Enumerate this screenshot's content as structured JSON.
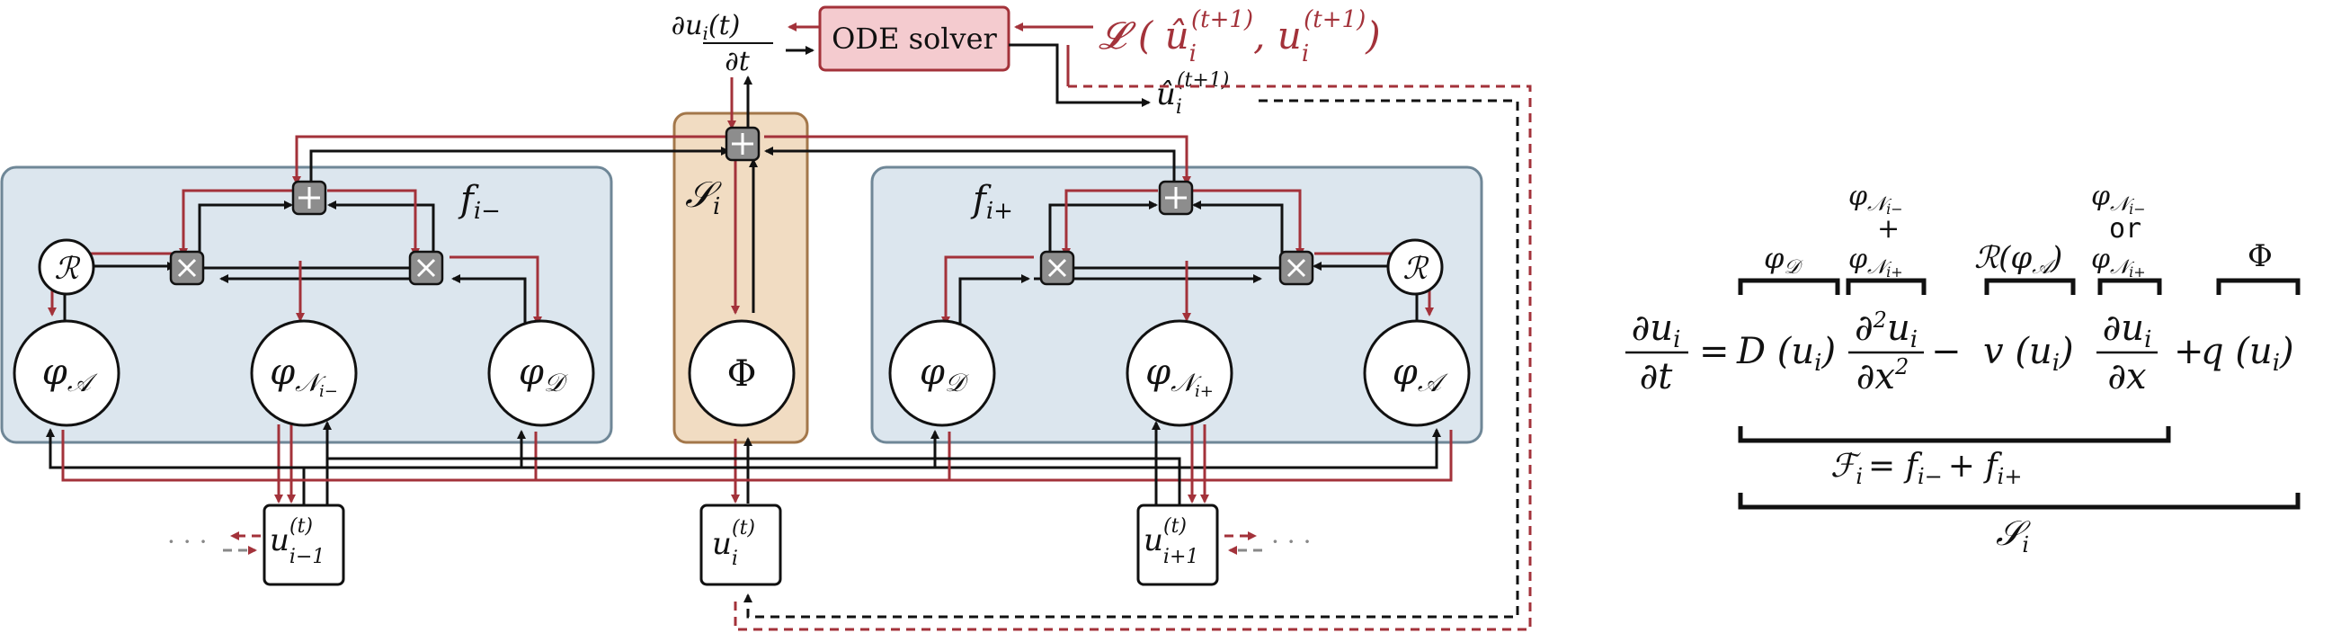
{
  "colors": {
    "panel_fill": "#dce6ee",
    "panel_stroke": "#6f8797",
    "center_fill": "#f1dcc2",
    "center_stroke": "#a3774a",
    "solver_fill": "#f4cbcf",
    "solver_stroke": "#a3323a",
    "forward_wire": "#111111",
    "backward_wire": "#a3323a",
    "op_node_fill": "#8d8d8d"
  },
  "diagram": {
    "solver_label": "ODE solver",
    "loss_label": "𝓛 ( û",
    "loss_sup1": "(t+1)",
    "loss_mid": ", u",
    "loss_sub1": "i",
    "loss_sub2": "i",
    "loss_sup2": "(t+1)",
    "loss_close": ")",
    "deriv_num": "∂u",
    "deriv_num_sub": "i",
    "deriv_num_tail": "(t)",
    "deriv_den": "∂t",
    "output_label": "û",
    "output_sub": "i",
    "output_sup": "(t+1)",
    "left_panel_label": "f",
    "left_panel_sub": "i−",
    "right_panel_label": "f",
    "right_panel_sub": "i+",
    "center_label": "𝒮",
    "center_sub": "i",
    "phi": "Φ",
    "varphi": "φ",
    "sub_A": "𝒜",
    "sub_D": "𝒟",
    "sub_N": "𝒩",
    "sub_Nm": "i−",
    "sub_Np": "i+",
    "reaction": "ℛ",
    "input_u": "u",
    "input_sup": "(t)",
    "input_sub_prev": "i−1",
    "input_sub_curr": "i",
    "input_sub_next": "i+1",
    "ellipsis": "· · ·"
  },
  "equation": {
    "lhs_num": "∂u",
    "lhs_sub": "i",
    "lhs_den": "∂t",
    "eq": "=",
    "term_D": "D (u",
    "term_D_sub": "i",
    "term_D_close": ")",
    "d2_num": "∂",
    "d2_num_sup": "2",
    "d2_num_u": "u",
    "d2_num_sub": "i",
    "d2_den": "∂x",
    "d2_den_sup": "2",
    "minus": "−",
    "term_v": "v (u",
    "term_v_sub": "i",
    "term_v_close": ")",
    "d1_num": "∂u",
    "d1_num_sub": "i",
    "d1_den": "∂x",
    "plus": "+",
    "term_q": "q (u",
    "term_q_sub": "i",
    "term_q_close": ")",
    "label_phiD": "φ",
    "label_phiD_sub": "𝒟",
    "label_sum_top": "φ",
    "label_sum_top_sub": "𝒩",
    "label_sum_top_subsub": "i−",
    "label_sum_plus": "+",
    "label_sum_bot": "φ",
    "label_sum_bot_sub": "𝒩",
    "label_sum_bot_subsub": "i+",
    "label_RA": "ℛ(φ",
    "label_RA_sub": "𝒜",
    "label_RA_close": ")",
    "label_or_top": "φ",
    "label_or_top_sub": "𝒩",
    "label_or_top_subsub": "i−",
    "label_or": "or",
    "label_or_bot": "φ",
    "label_or_bot_sub": "𝒩",
    "label_or_bot_subsub": "i+",
    "label_Phi": "Φ",
    "label_F": "ℱ",
    "label_F_sub": "i",
    "label_F_rest": "= f",
    "label_F_sub2": "i−",
    "label_F_plus": "+ f",
    "label_F_sub3": "i+",
    "label_S": "𝒮",
    "label_S_sub": "i"
  }
}
